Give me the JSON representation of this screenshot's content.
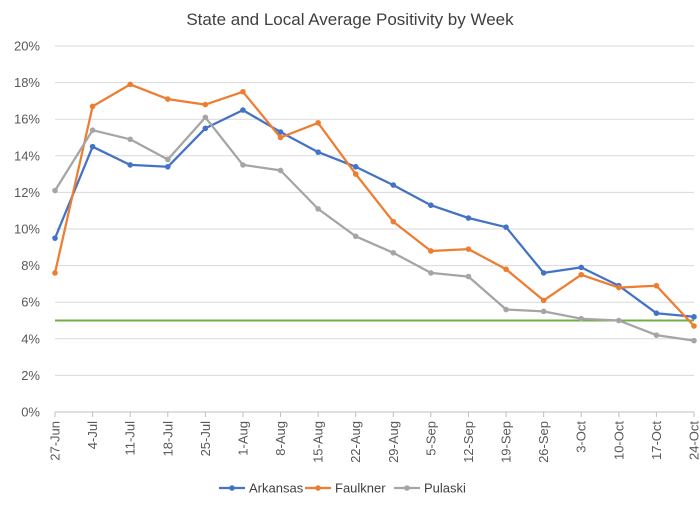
{
  "chart_data": {
    "type": "line",
    "title": "State and Local Average Positivity by Week",
    "xlabel": "",
    "ylabel": "",
    "ylim": [
      0,
      20
    ],
    "y_ticks": [
      "0%",
      "2%",
      "4%",
      "6%",
      "8%",
      "10%",
      "12%",
      "14%",
      "16%",
      "18%",
      "20%"
    ],
    "categories": [
      "27-Jun",
      "4-Jul",
      "11-Jul",
      "18-Jul",
      "25-Jul",
      "1-Aug",
      "8-Aug",
      "15-Aug",
      "22-Aug",
      "29-Aug",
      "5-Sep",
      "12-Sep",
      "19-Sep",
      "26-Sep",
      "3-Oct",
      "10-Oct",
      "17-Oct",
      "24-Oct"
    ],
    "series": [
      {
        "name": "Arkansas",
        "color": "#4472C4",
        "values": [
          9.5,
          14.5,
          13.5,
          13.4,
          15.5,
          16.5,
          15.3,
          14.2,
          13.4,
          12.4,
          11.3,
          10.6,
          10.1,
          7.6,
          7.9,
          6.9,
          5.4,
          5.2
        ]
      },
      {
        "name": "Faulkner",
        "color": "#ED7D31",
        "values": [
          7.6,
          16.7,
          17.9,
          17.1,
          16.8,
          17.5,
          15.0,
          15.8,
          13.0,
          10.4,
          8.8,
          8.9,
          7.8,
          6.1,
          7.5,
          6.8,
          6.9,
          4.7
        ]
      },
      {
        "name": "Pulaski",
        "color": "#A5A5A5",
        "values": [
          12.1,
          15.4,
          14.9,
          13.8,
          16.1,
          13.5,
          13.2,
          11.1,
          9.6,
          8.7,
          7.6,
          7.4,
          5.6,
          5.5,
          5.1,
          5.0,
          4.2,
          3.9
        ]
      }
    ],
    "reference_line": {
      "value": 5.0,
      "color": "#70AD47"
    },
    "grid": true,
    "legend_position": "bottom"
  }
}
